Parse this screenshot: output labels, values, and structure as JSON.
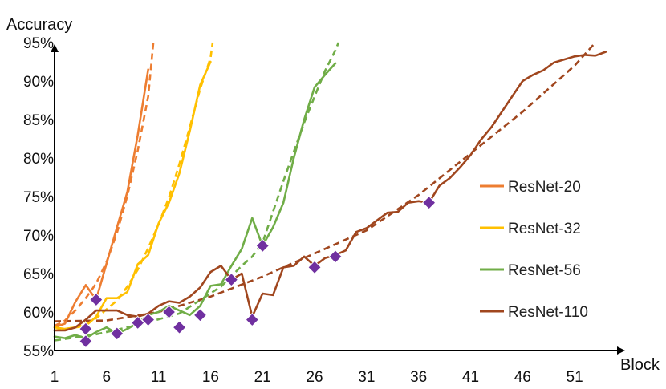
{
  "chart_data": {
    "type": "line",
    "title": "",
    "ylabel": "Accuracy",
    "xlabel": "Block",
    "xlim": [
      1,
      54
    ],
    "ylim": [
      55,
      95
    ],
    "x_ticks": [
      1,
      6,
      11,
      16,
      21,
      26,
      31,
      36,
      41,
      46,
      51
    ],
    "x_tick_labels": [
      "1",
      "6",
      "11",
      "16",
      "21",
      "26",
      "31",
      "36",
      "41",
      "46",
      "51"
    ],
    "y_ticks": [
      55,
      60,
      65,
      70,
      75,
      80,
      85,
      90,
      95
    ],
    "y_tick_labels": [
      "55%",
      "60%",
      "65%",
      "70%",
      "75%",
      "80%",
      "85%",
      "90%",
      "95%"
    ],
    "grid": "horizontal",
    "legend_position": "right",
    "series": [
      {
        "name": "ResNet-20",
        "color": "#ED7D31",
        "x": [
          1,
          2,
          3,
          4,
          5,
          6,
          7,
          8,
          9,
          10
        ],
        "y": [
          58.0,
          58.5,
          61.3,
          63.5,
          61.6,
          66.3,
          71.0,
          75.6,
          83.0,
          91.5
        ],
        "trend": {
          "x": [
            1,
            2,
            3,
            4,
            5,
            6,
            7,
            8,
            9,
            10,
            10.5
          ],
          "y": [
            58.2,
            58.9,
            60.2,
            61.8,
            63.7,
            66.5,
            70.3,
            75.1,
            81.0,
            88.0,
            95.0
          ]
        }
      },
      {
        "name": "ResNet-32",
        "color": "#FFC000",
        "x": [
          1,
          2,
          3,
          4,
          5,
          6,
          7,
          8,
          9,
          10,
          11,
          12,
          13,
          14,
          15,
          16
        ],
        "y": [
          58.0,
          57.8,
          58.0,
          58.2,
          59.4,
          61.8,
          61.8,
          62.6,
          66.2,
          67.4,
          71.5,
          74.2,
          78.0,
          83.5,
          89.5,
          92.5
        ],
        "trend": {
          "x": [
            1,
            3,
            5,
            7,
            8,
            9,
            10,
            11,
            12,
            13,
            14,
            15,
            16,
            16.2
          ],
          "y": [
            57.6,
            58.0,
            59.2,
            61.5,
            63.3,
            65.5,
            68.3,
            71.4,
            74.9,
            79.2,
            84.0,
            89.0,
            93.0,
            95.0
          ]
        }
      },
      {
        "name": "ResNet-56",
        "color": "#70AD47",
        "x": [
          1,
          2,
          3,
          4,
          5,
          6,
          7,
          8,
          9,
          10,
          11,
          12,
          13,
          14,
          15,
          16,
          17,
          18,
          19,
          20,
          21,
          22,
          23,
          24,
          25,
          26,
          27,
          28
        ],
        "y": [
          56.8,
          56.6,
          57.0,
          56.6,
          57.4,
          58.0,
          57.2,
          57.8,
          58.6,
          59.6,
          60.0,
          60.8,
          60.2,
          59.6,
          60.8,
          63.4,
          63.6,
          66.0,
          68.2,
          72.2,
          68.6,
          71.0,
          74.2,
          80.0,
          85.0,
          89.2,
          90.8,
          92.3
        ],
        "trend": {
          "x": [
            1,
            5,
            9,
            13,
            17,
            19,
            20,
            21,
            22,
            23,
            24,
            25,
            26,
            27,
            28,
            28.3
          ],
          "y": [
            56.3,
            57.1,
            58.3,
            59.8,
            63.3,
            66.0,
            67.2,
            69.0,
            73.0,
            77.0,
            80.8,
            84.6,
            88.0,
            91.3,
            94.0,
            95.0
          ]
        }
      },
      {
        "name": "ResNet-110",
        "color": "#A0461E",
        "x": [
          1,
          2,
          3,
          4,
          5,
          6,
          7,
          8,
          9,
          10,
          11,
          12,
          13,
          14,
          15,
          16,
          17,
          18,
          19,
          20,
          21,
          22,
          23,
          24,
          25,
          26,
          27,
          28,
          29,
          30,
          31,
          32,
          33,
          34,
          35,
          36,
          37,
          38,
          39,
          40,
          41,
          42,
          43,
          44,
          45,
          46,
          47,
          48,
          49,
          50,
          51,
          52,
          53,
          54
        ],
        "y": [
          57.6,
          57.6,
          58.0,
          59.0,
          60.2,
          60.2,
          60.2,
          59.6,
          59.4,
          59.8,
          60.8,
          61.4,
          61.2,
          62.0,
          63.2,
          65.2,
          66.0,
          64.2,
          65.0,
          59.4,
          62.4,
          62.2,
          65.8,
          66.0,
          67.2,
          66.0,
          67.0,
          67.4,
          68.0,
          70.4,
          70.9,
          71.9,
          72.9,
          73.0,
          74.2,
          74.4,
          74.2,
          76.4,
          77.4,
          78.8,
          80.4,
          82.4,
          84.0,
          86.0,
          88.0,
          90.0,
          90.8,
          91.4,
          92.4,
          92.8,
          93.2,
          93.4,
          93.3,
          93.8
        ],
        "trend": {
          "x": [
            1,
            6,
            11,
            16,
            21,
            26,
            31,
            36,
            41,
            46,
            51,
            53
          ],
          "y": [
            58.8,
            58.9,
            60.0,
            62.0,
            64.6,
            67.6,
            70.6,
            75.2,
            80.6,
            86.0,
            92.0,
            95.0
          ]
        }
      }
    ],
    "markers": {
      "color": "#7030A0",
      "points": [
        {
          "x": 4,
          "y": 56.2
        },
        {
          "x": 4,
          "y": 57.8
        },
        {
          "x": 5,
          "y": 61.6
        },
        {
          "x": 7,
          "y": 57.2
        },
        {
          "x": 9,
          "y": 58.6
        },
        {
          "x": 10,
          "y": 59.0
        },
        {
          "x": 12,
          "y": 60.0
        },
        {
          "x": 13,
          "y": 58.0
        },
        {
          "x": 15,
          "y": 59.6
        },
        {
          "x": 18,
          "y": 64.2
        },
        {
          "x": 20,
          "y": 59.0
        },
        {
          "x": 21,
          "y": 68.6
        },
        {
          "x": 26,
          "y": 65.8
        },
        {
          "x": 28,
          "y": 67.2
        },
        {
          "x": 37,
          "y": 74.2
        }
      ]
    }
  }
}
